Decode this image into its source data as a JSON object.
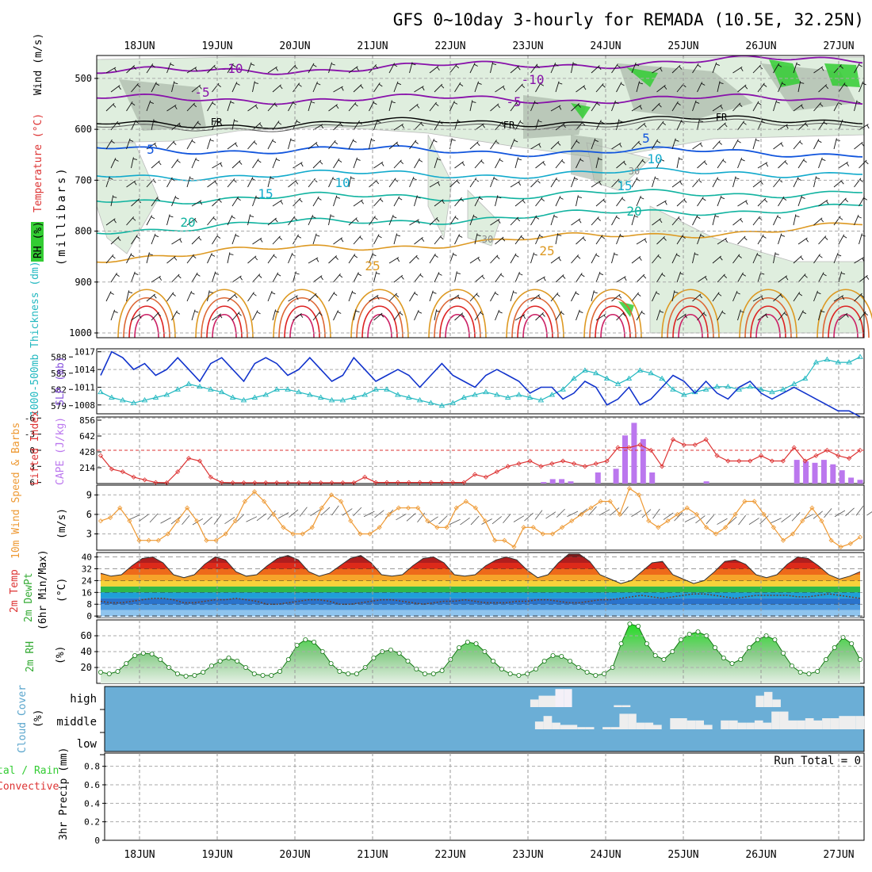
{
  "title": "GFS 0~10day 3-hourly for REMADA (10.5E, 32.25N)",
  "date_labels": [
    "18JUN",
    "19JUN",
    "20JUN",
    "21JUN",
    "22JUN",
    "23JUN",
    "24JUN",
    "25JUN",
    "26JUN",
    "27JUN"
  ],
  "colors": {
    "rh_fill": "#dfeede",
    "rh_dark": "#9aa99a",
    "rh_green": "#33cc33",
    "contour_purple": "#8811aa",
    "contour_blue": "#1155dd",
    "contour_cyan": "#11aacc",
    "contour_teal": "#11b3a0",
    "contour_orange": "#dd9922",
    "contour_red": "#dd2222",
    "slp": "#1133cc",
    "thickness": "#22b8c0",
    "lifted_index": "#dd3333",
    "cape": "#bb77ee",
    "wind_speed": "#ee9933",
    "rh2m": "#33cc33",
    "cloud_bg": "#6baed6",
    "cloud_bar": "#eeeeee"
  },
  "chart_data": [
    {
      "id": "upper_air",
      "type": "contour",
      "ylabel_parts": [
        "RH (%)",
        "Temperature (°C)",
        "Wind (m/s)"
      ],
      "ylabel_unit": "(millibars)",
      "y_ticks": [
        "500",
        "600",
        "700",
        "800",
        "900",
        "1000"
      ],
      "contour_labels": [
        {
          "text": "-10",
          "level": -10
        },
        {
          "text": "-5",
          "level": -5
        },
        {
          "text": "FR",
          "level": 0
        },
        {
          "text": "5",
          "level": 5
        },
        {
          "text": "10",
          "level": 10
        },
        {
          "text": "15",
          "level": 15
        },
        {
          "text": "20",
          "level": 20
        },
        {
          "text": "25",
          "level": 25
        },
        {
          "text": "30",
          "level": 30
        }
      ]
    },
    {
      "id": "slp_thickness",
      "type": "line",
      "ylabel_left": "1000-500mb Thickness (dm)",
      "ylabel_right": "SLP (mb)",
      "ticks_left": [
        "588",
        "585",
        "582",
        "579"
      ],
      "ticks_right": [
        "1017",
        "1014",
        "1011",
        "1008"
      ],
      "slp_series": [
        1013,
        1017,
        1016,
        1014,
        1015,
        1013,
        1014,
        1016,
        1014,
        1012,
        1015,
        1016,
        1014,
        1012,
        1015,
        1016,
        1015,
        1013,
        1014,
        1016,
        1014,
        1012,
        1013,
        1016,
        1014,
        1012,
        1013,
        1014,
        1013,
        1011,
        1013,
        1015,
        1013,
        1012,
        1011,
        1013,
        1014,
        1013,
        1012,
        1010,
        1011,
        1011,
        1009,
        1010,
        1012,
        1011,
        1008,
        1009,
        1011,
        1008,
        1009,
        1011,
        1013,
        1012,
        1010,
        1012,
        1010,
        1009,
        1011,
        1012,
        1010,
        1009,
        1010,
        1011,
        1010,
        1009,
        1008,
        1007,
        1007,
        1006
      ],
      "thickness_series": [
        581.5,
        580.5,
        580,
        579.5,
        580,
        580.5,
        581,
        582,
        583,
        582.5,
        582,
        581.5,
        580.5,
        580,
        580.5,
        581,
        582,
        582,
        581.5,
        581,
        580.5,
        580,
        580,
        580.5,
        581,
        582,
        582,
        581,
        580.5,
        580,
        579.5,
        579,
        579.5,
        580.5,
        581,
        581.5,
        581,
        580.5,
        581,
        580.5,
        580,
        581,
        582,
        584,
        585.5,
        585,
        584,
        583,
        584,
        585.5,
        585,
        584,
        582,
        581,
        581.5,
        582,
        582.5,
        582.5,
        582,
        582.5,
        582,
        581.5,
        582,
        583,
        584,
        587,
        587.5,
        587,
        587,
        588
      ]
    },
    {
      "id": "lifted_cape",
      "type": "line+bar",
      "ylabel_left": "Lifted Index",
      "ylabel_right": "CAPE (J/kg)",
      "ticks_left": [
        "-6",
        "-3",
        "0",
        "3",
        "6"
      ],
      "ticks_right": [
        "856",
        "642",
        "428",
        "214"
      ],
      "lifted_index": [
        1,
        3.5,
        4,
        5,
        5.5,
        6,
        6.5,
        4,
        1.5,
        2,
        5,
        6,
        6.5,
        6.5,
        6.5,
        6.5,
        6.5,
        6.5,
        6.5,
        6.5,
        6.5,
        6.5,
        6.5,
        6.5,
        5,
        6,
        6,
        6,
        6,
        6,
        6,
        6,
        6,
        6,
        4.5,
        5,
        4,
        3,
        2.5,
        2,
        3,
        2.5,
        2,
        2.5,
        3,
        2.5,
        2,
        -0.5,
        -0.5,
        -1,
        0,
        3,
        -2,
        -1,
        -1,
        -2,
        1,
        2,
        2,
        2,
        1,
        2,
        2,
        -0.5,
        2,
        1,
        0,
        1,
        1.5,
        0
      ],
      "cape_bars": [
        0,
        0,
        0,
        0,
        0,
        0,
        0,
        0,
        0,
        0,
        0,
        0,
        0,
        0,
        0,
        0,
        0,
        0,
        0,
        0,
        0,
        0,
        0,
        0,
        0,
        0,
        0,
        0,
        0,
        0,
        0,
        0,
        0,
        0,
        0,
        0,
        0,
        0,
        0,
        0,
        0,
        0,
        0,
        0,
        0,
        0,
        0,
        0,
        0,
        20,
        60,
        60,
        30,
        0,
        0,
        150,
        0,
        200,
        650,
        820,
        600,
        150,
        0,
        0,
        0,
        0,
        0,
        30,
        0,
        0,
        0,
        0,
        0,
        0,
        0,
        0,
        0,
        320,
        300,
        280,
        320,
        260,
        180,
        80,
        50
      ]
    },
    {
      "id": "wind10m",
      "type": "line",
      "ylabel": "10m Wind Speed & Barbs",
      "yunit": "(m/s)",
      "ticks": [
        "9",
        "6",
        "3"
      ],
      "series": [
        5,
        5.5,
        7,
        5,
        2,
        2,
        2,
        3,
        5,
        7,
        5,
        2,
        2,
        3,
        5,
        8,
        9.5,
        8,
        6,
        4,
        3,
        3,
        4,
        7,
        9,
        8,
        5,
        3,
        3,
        4,
        6,
        7,
        7,
        7,
        5,
        4,
        4,
        7,
        8,
        7,
        5,
        2,
        2,
        1,
        4,
        4,
        3,
        3,
        4,
        5,
        6,
        7,
        8,
        8,
        6,
        10,
        9,
        5,
        4,
        5,
        6,
        7,
        6,
        4,
        3,
        4,
        6,
        8,
        8,
        6,
        4,
        2,
        3,
        5,
        7,
        5,
        2,
        1,
        1.5,
        2.5
      ]
    },
    {
      "id": "temp2m",
      "type": "area",
      "ylabel": "2m Temp / 2m DewPt (6hr Min/Max)",
      "yunit": "(°C)",
      "ticks": [
        "40",
        "32",
        "24",
        "16",
        "8",
        "0"
      ],
      "temp_series": [
        29,
        27,
        28,
        34,
        39,
        40,
        36,
        28,
        26,
        28,
        35,
        40,
        38,
        30,
        27,
        28,
        34,
        39,
        41,
        38,
        30,
        27,
        29,
        34,
        39,
        41,
        36,
        28,
        27,
        28,
        34,
        39,
        40,
        36,
        28,
        27,
        28,
        34,
        38,
        40,
        38,
        31,
        26,
        28,
        36,
        42,
        42,
        37,
        28,
        25,
        22,
        24,
        30,
        36,
        37,
        28,
        25,
        22,
        24,
        30,
        37,
        38,
        35,
        28,
        26,
        28,
        35,
        40,
        39,
        34,
        28,
        25,
        27,
        30
      ],
      "dewpoint_series": [
        10,
        9,
        9,
        10,
        11,
        12,
        12,
        11,
        9,
        9,
        10,
        11,
        11,
        12,
        11,
        10,
        8,
        8,
        9,
        10,
        11,
        11,
        10,
        8,
        8,
        9,
        10,
        11,
        11,
        10,
        9,
        8,
        9,
        10,
        10,
        11,
        10,
        9,
        9,
        9,
        10,
        10,
        11,
        11,
        10,
        9,
        9,
        10,
        11,
        11,
        12,
        13,
        14,
        13,
        12,
        13,
        14,
        15,
        15,
        14,
        13,
        12,
        13,
        14,
        14,
        14,
        14,
        13,
        13,
        14,
        15,
        14,
        13,
        12
      ]
    },
    {
      "id": "rh2m",
      "type": "area",
      "ylabel": "2m RH",
      "yunit": "(%)",
      "ticks": [
        "60",
        "40",
        "20"
      ],
      "series": [
        14,
        12,
        15,
        25,
        35,
        38,
        37,
        30,
        20,
        12,
        9,
        10,
        14,
        22,
        28,
        32,
        28,
        20,
        12,
        10,
        10,
        15,
        30,
        48,
        55,
        52,
        40,
        25,
        15,
        12,
        12,
        20,
        32,
        40,
        42,
        38,
        28,
        18,
        12,
        12,
        16,
        30,
        45,
        52,
        50,
        40,
        28,
        18,
        12,
        10,
        12,
        18,
        28,
        35,
        34,
        28,
        20,
        14,
        10,
        12,
        20,
        50,
        75,
        72,
        50,
        35,
        30,
        40,
        55,
        62,
        65,
        60,
        45,
        32,
        25,
        30,
        45,
        55,
        60,
        55,
        38,
        22,
        14,
        12,
        15,
        30,
        45,
        58,
        50,
        30
      ]
    },
    {
      "id": "cloud",
      "type": "bar",
      "ylabel": "Cloud Cover",
      "yunit": "(%)",
      "ticks": [
        "high",
        "middle",
        "low"
      ],
      "high_bars": [
        0,
        0,
        0,
        0,
        0,
        0,
        0,
        0,
        0,
        0,
        0,
        0,
        0,
        0,
        0,
        0,
        0,
        0,
        0,
        0,
        0,
        0,
        0,
        0,
        0,
        0,
        0,
        0,
        0,
        0,
        0,
        0,
        0,
        0,
        0,
        0,
        0,
        0,
        0,
        0,
        0,
        0,
        0,
        0,
        0,
        0,
        0,
        0,
        0,
        0,
        0,
        40,
        60,
        60,
        95,
        95,
        0,
        0,
        0,
        0,
        0,
        10,
        10,
        0,
        0,
        0,
        0,
        0,
        0,
        0,
        0,
        0,
        0,
        0,
        0,
        0,
        0,
        0,
        60,
        80,
        40,
        0,
        0,
        0,
        0,
        0,
        0,
        0,
        0,
        0,
        0
      ],
      "mid_bars": [
        0,
        0,
        0,
        0,
        0,
        0,
        0,
        0,
        0,
        0,
        0,
        0,
        0,
        0,
        0,
        0,
        0,
        0,
        0,
        0,
        0,
        0,
        0,
        0,
        0,
        0,
        0,
        0,
        0,
        0,
        0,
        0,
        0,
        0,
        0,
        0,
        0,
        0,
        0,
        0,
        0,
        0,
        0,
        0,
        0,
        0,
        0,
        0,
        0,
        0,
        0,
        35,
        60,
        30,
        20,
        20,
        10,
        10,
        0,
        10,
        10,
        70,
        70,
        30,
        30,
        20,
        0,
        50,
        50,
        40,
        40,
        20,
        0,
        40,
        40,
        30,
        30,
        40,
        30,
        80,
        80,
        40,
        40,
        50,
        40,
        50,
        50,
        60,
        60,
        60
      ]
    },
    {
      "id": "precip",
      "type": "bar",
      "ylabel": "Total / Rain / Convective",
      "ylabel_parts": [
        "Total",
        " / Rain",
        "Convective"
      ],
      "yunit": "3hr Precip (mm)",
      "ticks": [
        "0.8",
        "0.6",
        "0.4",
        "0.2",
        "0"
      ],
      "run_total": "Run Total = 0",
      "series": []
    }
  ]
}
